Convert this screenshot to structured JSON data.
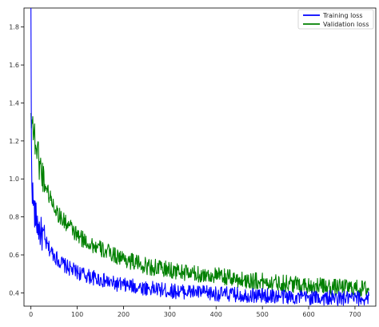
{
  "chart_data": {
    "type": "line",
    "title": "",
    "xlabel": "",
    "ylabel": "",
    "xlim": [
      -15,
      745
    ],
    "ylim": [
      0.33,
      1.9
    ],
    "x_ticks": [
      0,
      100,
      200,
      300,
      400,
      500,
      600,
      700
    ],
    "y_ticks": [
      0.4,
      0.6,
      0.8,
      1.0,
      1.2,
      1.4,
      1.6,
      1.8
    ],
    "x_tick_labels": [
      "0",
      "100",
      "200",
      "300",
      "400",
      "500",
      "600",
      "700"
    ],
    "y_tick_labels": [
      "0.4",
      "0.6",
      "0.8",
      "1.0",
      "1.2",
      "1.4",
      "1.6",
      "1.8"
    ],
    "grid": false,
    "legend_position": "top-right",
    "series": [
      {
        "name": "Training loss",
        "color": "#0000ff",
        "x": [
          0,
          1,
          2,
          3,
          5,
          8,
          12,
          16,
          20,
          25,
          30,
          40,
          50,
          60,
          75,
          90,
          100,
          120,
          150,
          175,
          200,
          250,
          300,
          350,
          400,
          450,
          500,
          550,
          600,
          650,
          700,
          730
        ],
        "y": [
          1.88,
          1.2,
          1.02,
          0.95,
          0.88,
          0.82,
          0.78,
          0.75,
          0.72,
          0.7,
          0.67,
          0.63,
          0.6,
          0.57,
          0.54,
          0.52,
          0.51,
          0.49,
          0.47,
          0.45,
          0.44,
          0.425,
          0.41,
          0.405,
          0.395,
          0.39,
          0.385,
          0.38,
          0.375,
          0.372,
          0.37,
          0.37
        ],
        "noise": 0.04
      },
      {
        "name": "Validation loss",
        "color": "#008000",
        "x": [
          0,
          2,
          5,
          10,
          15,
          20,
          25,
          30,
          40,
          50,
          60,
          70,
          80,
          90,
          100,
          120,
          150,
          200,
          250,
          300,
          350,
          400,
          450,
          500,
          550,
          600,
          650,
          700,
          730
        ],
        "y": [
          1.32,
          1.38,
          1.25,
          1.2,
          1.13,
          1.07,
          1.02,
          0.98,
          0.91,
          0.86,
          0.81,
          0.78,
          0.76,
          0.73,
          0.7,
          0.67,
          0.63,
          0.58,
          0.54,
          0.52,
          0.5,
          0.49,
          0.47,
          0.46,
          0.45,
          0.44,
          0.43,
          0.425,
          0.42
        ],
        "noise": 0.045
      }
    ]
  }
}
